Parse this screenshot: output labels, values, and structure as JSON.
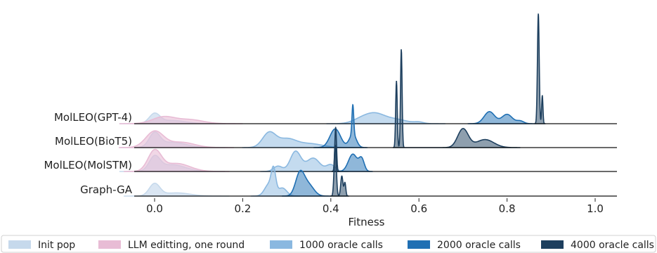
{
  "chart_data": {
    "type": "ridgeline-density",
    "title": "",
    "xlabel": "Fitness",
    "ylabel": "",
    "xlim": [
      -0.05,
      1.05
    ],
    "xticks": [
      0.0,
      0.2,
      0.4,
      0.6,
      0.8,
      1.0
    ],
    "xtick_labels": [
      "0.0",
      "0.2",
      "0.4",
      "0.6",
      "0.8",
      "1.0"
    ],
    "grid": false,
    "legend_position": "bottom",
    "legend": [
      {
        "label": "Init pop",
        "color": "#c6d9ec"
      },
      {
        "label": "LLM editting, one round",
        "color": "#e8bcd5"
      },
      {
        "label": "1000 oracle calls",
        "color": "#8ab8e0"
      },
      {
        "label": "2000 oracle calls",
        "color": "#1f6fb3"
      },
      {
        "label": "4000 oracle calls",
        "color": "#1d3f5e"
      }
    ],
    "rows": [
      {
        "label": "MolLEO(GPT-4)",
        "series": [
          {
            "name": "Init pop",
            "peaks": [
              [
                0.0,
                0.012,
                0.35
              ],
              [
                0.04,
                0.03,
                0.12
              ]
            ]
          },
          {
            "name": "LLM editting, one round",
            "peaks": [
              [
                0.02,
                0.025,
                0.25
              ],
              [
                0.08,
                0.03,
                0.15
              ]
            ]
          },
          {
            "name": "1000 oracle calls",
            "peaks": [
              [
                0.47,
                0.02,
                0.18
              ],
              [
                0.5,
                0.02,
                0.28
              ],
              [
                0.54,
                0.03,
                0.18
              ],
              [
                0.6,
                0.01,
                0.05
              ]
            ]
          },
          {
            "name": "2000 oracle calls",
            "peaks": [
              [
                0.76,
                0.012,
                0.45
              ],
              [
                0.8,
                0.012,
                0.35
              ],
              [
                0.83,
                0.008,
                0.1
              ]
            ]
          },
          {
            "name": "4000 oracle calls",
            "peaks": [
              [
                0.871,
                0.002,
                4.1
              ],
              [
                0.88,
                0.0015,
                1.05
              ]
            ]
          }
        ]
      },
      {
        "label": "MolLEO(BioT5)",
        "series": [
          {
            "name": "Init pop",
            "peaks": [
              [
                0.0,
                0.012,
                0.5
              ],
              [
                0.04,
                0.03,
                0.2
              ]
            ]
          },
          {
            "name": "LLM editting, one round",
            "peaks": [
              [
                0.0,
                0.02,
                0.6
              ],
              [
                0.06,
                0.03,
                0.2
              ]
            ]
          },
          {
            "name": "1000 oracle calls",
            "peaks": [
              [
                0.26,
                0.015,
                0.55
              ],
              [
                0.3,
                0.02,
                0.3
              ],
              [
                0.35,
                0.03,
                0.15
              ]
            ]
          },
          {
            "name": "2000 oracle calls",
            "peaks": [
              [
                0.41,
                0.012,
                0.7
              ],
              [
                0.45,
                0.008,
                0.5
              ],
              [
                0.45,
                0.002,
                1.1
              ]
            ]
          },
          {
            "name": "4000 oracle calls",
            "peaks": [
              [
                0.549,
                0.0018,
                2.5
              ],
              [
                0.56,
                0.0018,
                3.7
              ],
              [
                0.7,
                0.012,
                0.7
              ],
              [
                0.75,
                0.02,
                0.3
              ]
            ]
          }
        ]
      },
      {
        "label": "MolLEO(MolSTM)",
        "series": [
          {
            "name": "Init pop",
            "peaks": [
              [
                0.0,
                0.012,
                0.5
              ],
              [
                0.04,
                0.03,
                0.25
              ]
            ]
          },
          {
            "name": "LLM editting, one round",
            "peaks": [
              [
                0.0,
                0.015,
                0.75
              ],
              [
                0.05,
                0.03,
                0.3
              ]
            ]
          },
          {
            "name": "1000 oracle calls",
            "peaks": [
              [
                0.32,
                0.012,
                0.75
              ],
              [
                0.36,
                0.015,
                0.5
              ],
              [
                0.4,
                0.01,
                0.25
              ],
              [
                0.28,
                0.01,
                0.2
              ]
            ]
          },
          {
            "name": "2000 oracle calls",
            "peaks": [
              [
                0.45,
                0.01,
                0.65
              ],
              [
                0.47,
                0.006,
                0.45
              ]
            ]
          },
          {
            "name": "4000 oracle calls",
            "peaks": [
              [
                0.411,
                0.002,
                1.65
              ]
            ]
          }
        ]
      },
      {
        "label": "Graph-GA",
        "series": [
          {
            "name": "Init pop",
            "peaks": [
              [
                0.0,
                0.012,
                0.45
              ],
              [
                0.05,
                0.03,
                0.12
              ]
            ]
          },
          {
            "name": "1000 oracle calls",
            "peaks": [
              [
                0.26,
                0.01,
                0.45
              ],
              [
                0.27,
                0.005,
                0.8
              ],
              [
                0.29,
                0.01,
                0.3
              ]
            ]
          },
          {
            "name": "2000 oracle calls",
            "peaks": [
              [
                0.33,
                0.01,
                0.85
              ],
              [
                0.35,
                0.012,
                0.4
              ]
            ]
          },
          {
            "name": "4000 oracle calls",
            "peaks": [
              [
                0.41,
                0.0025,
                1.9
              ],
              [
                0.425,
                0.0025,
                0.75
              ],
              [
                0.432,
                0.002,
                0.5
              ]
            ]
          }
        ]
      }
    ]
  }
}
